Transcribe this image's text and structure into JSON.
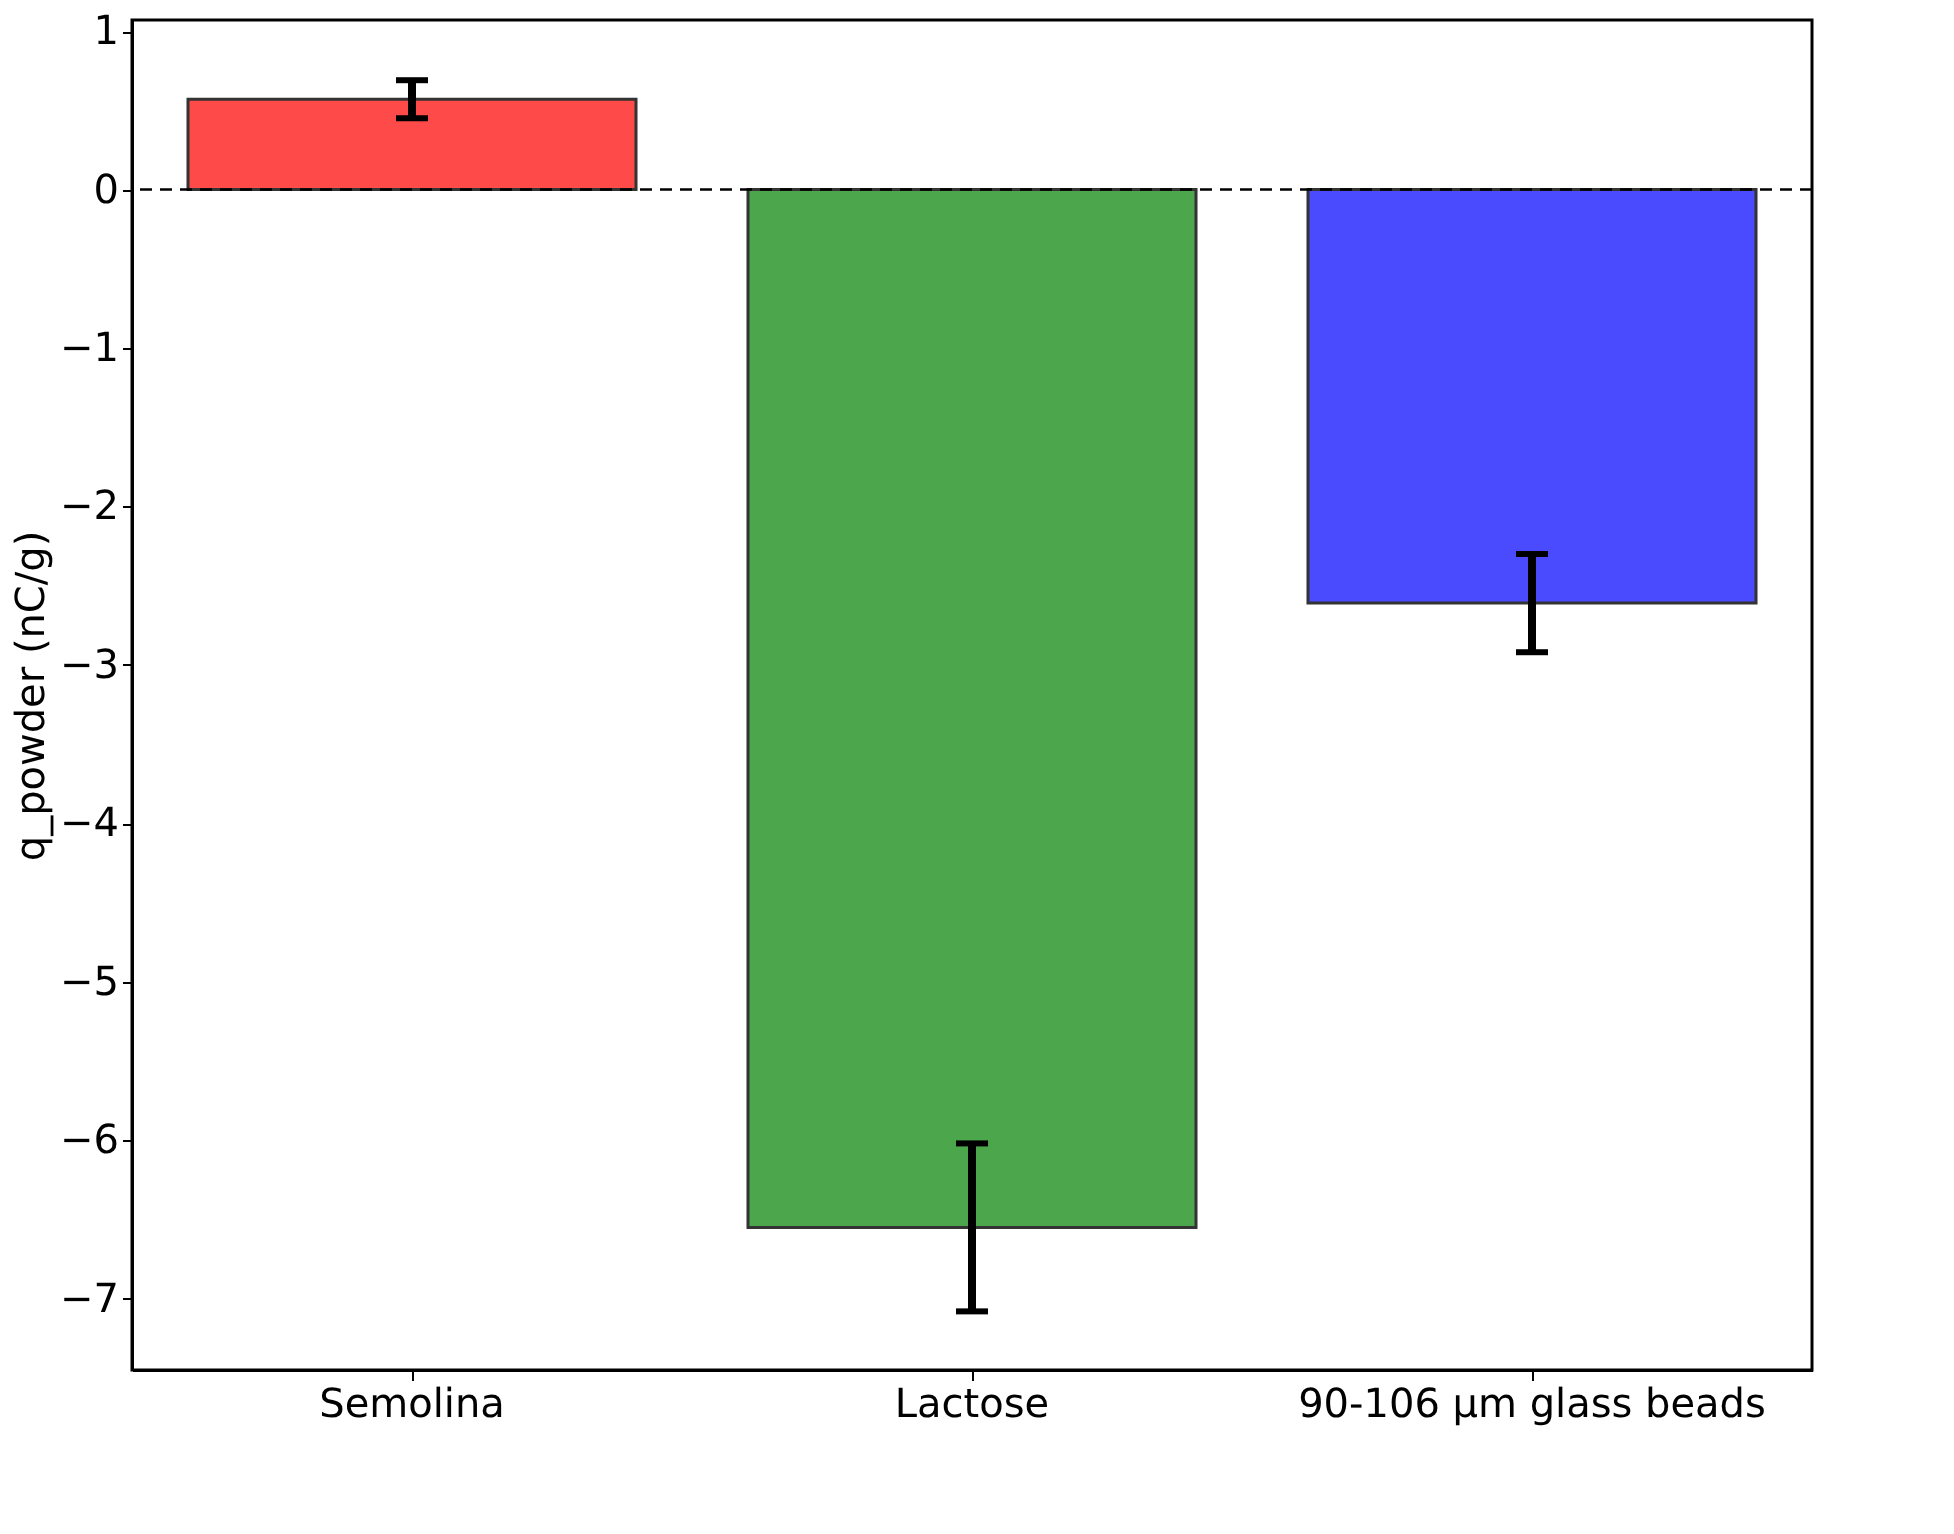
{
  "chart_data": {
    "type": "bar",
    "ylabel": "q_powder (nC/g)",
    "categories": [
      "Semolina",
      "Lactose",
      "90-106 µm glass beads"
    ],
    "values": [
      0.57,
      -6.55,
      -2.61
    ],
    "colors": [
      "#ff4a4a",
      "#4ca64c",
      "#4a4aff"
    ],
    "errors": [
      0.12,
      0.53,
      0.31
    ],
    "ylim": [
      -7.45,
      1.07
    ],
    "yticks": [
      1,
      0,
      -1,
      -2,
      -3,
      -4,
      -5,
      -6,
      -7
    ],
    "ref_lines": [
      {
        "axis": "y",
        "value": 0,
        "label": null,
        "color": "#000000",
        "line_style": "dashed"
      }
    ],
    "grid": false
  }
}
